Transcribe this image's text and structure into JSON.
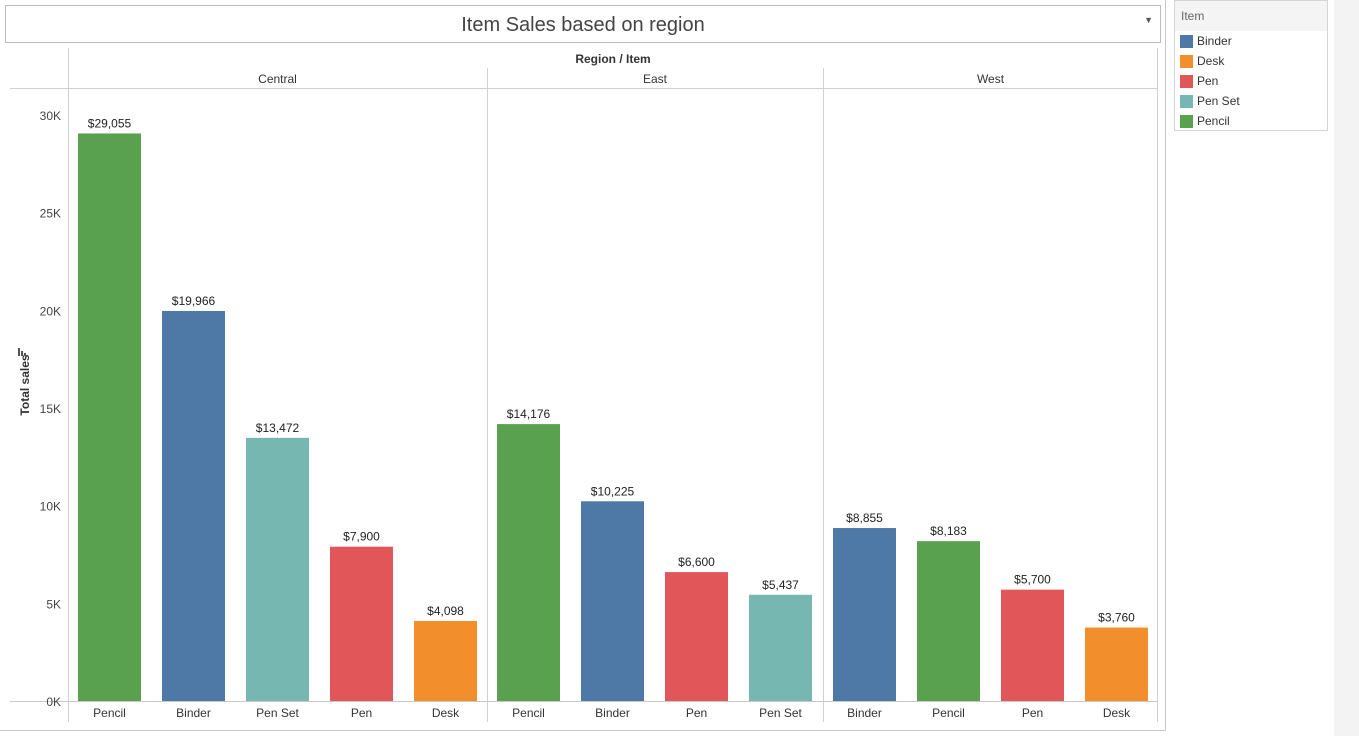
{
  "title": "Item Sales based on region",
  "legend": {
    "title": "Item",
    "items": [
      {
        "label": "Binder",
        "color": "#4e79a7"
      },
      {
        "label": "Desk",
        "color": "#f28e2b"
      },
      {
        "label": "Pen",
        "color": "#e15759"
      },
      {
        "label": "Pen Set",
        "color": "#76b7b2"
      },
      {
        "label": "Pencil",
        "color": "#59a14f"
      }
    ]
  },
  "chart_data": {
    "type": "bar",
    "title": "Item Sales based on region",
    "column_header": "Region / Item",
    "ylabel": "Total sales",
    "ylim": [
      0,
      30000
    ],
    "yticks": [
      {
        "value": 0,
        "label": "0K"
      },
      {
        "value": 5000,
        "label": "5K"
      },
      {
        "value": 10000,
        "label": "10K"
      },
      {
        "value": 15000,
        "label": "15K"
      },
      {
        "value": 20000,
        "label": "20K"
      },
      {
        "value": 25000,
        "label": "25K"
      },
      {
        "value": 30000,
        "label": "30K"
      }
    ],
    "panels": [
      {
        "region": "Central",
        "bars": [
          {
            "item": "Pencil",
            "value": 29055,
            "label": "$29,055"
          },
          {
            "item": "Binder",
            "value": 19966,
            "label": "$19,966"
          },
          {
            "item": "Pen Set",
            "value": 13472,
            "label": "$13,472"
          },
          {
            "item": "Pen",
            "value": 7900,
            "label": "$7,900"
          },
          {
            "item": "Desk",
            "value": 4098,
            "label": "$4,098"
          }
        ]
      },
      {
        "region": "East",
        "bars": [
          {
            "item": "Pencil",
            "value": 14176,
            "label": "$14,176"
          },
          {
            "item": "Binder",
            "value": 10225,
            "label": "$10,225"
          },
          {
            "item": "Pen",
            "value": 6600,
            "label": "$6,600"
          },
          {
            "item": "Pen Set",
            "value": 5437,
            "label": "$5,437"
          }
        ]
      },
      {
        "region": "West",
        "bars": [
          {
            "item": "Binder",
            "value": 8855,
            "label": "$8,855"
          },
          {
            "item": "Pencil",
            "value": 8183,
            "label": "$8,183"
          },
          {
            "item": "Pen",
            "value": 5700,
            "label": "$5,700"
          },
          {
            "item": "Desk",
            "value": 3760,
            "label": "$3,760"
          }
        ]
      }
    ]
  }
}
